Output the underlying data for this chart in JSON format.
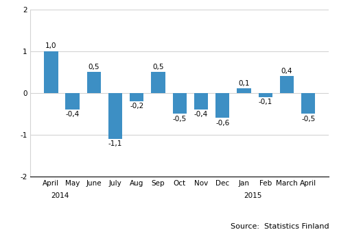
{
  "categories": [
    "April",
    "May",
    "June",
    "July",
    "Aug",
    "Sep",
    "Oct",
    "Nov",
    "Dec",
    "Jan",
    "Feb",
    "March",
    "April"
  ],
  "year_labels": [
    [
      "2014",
      0
    ],
    [
      "2015",
      9
    ]
  ],
  "values": [
    1.0,
    -0.4,
    0.5,
    -1.1,
    -0.2,
    0.5,
    -0.5,
    -0.4,
    -0.6,
    0.1,
    -0.1,
    0.4,
    -0.5
  ],
  "bar_color": "#3d8fc4",
  "ylim": [
    -2,
    2
  ],
  "yticks": [
    -2,
    -1,
    0,
    1,
    2
  ],
  "grid_yticks": [
    -1,
    0,
    1,
    2
  ],
  "source_text": "Source:  Statistics Finland",
  "background_color": "#ffffff",
  "label_fontsize": 7.5,
  "tick_fontsize": 7.5,
  "source_fontsize": 8,
  "bar_width": 0.65
}
